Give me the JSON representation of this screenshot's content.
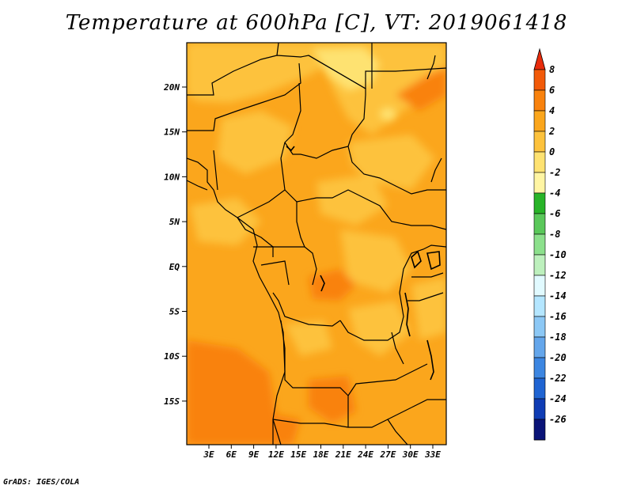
{
  "title": "Temperature at 600hPa [C], VT: 2019061418",
  "credit": "GrADS: IGES/COLA",
  "map": {
    "variable": "Temperature",
    "level": "600hPa",
    "units": "C",
    "valid_time": "2019061418",
    "lon_range": [
      0,
      35
    ],
    "lat_range": [
      -20,
      25
    ],
    "lat_labels": [
      "20N",
      "15N",
      "10N",
      "5N",
      "EQ",
      "5S",
      "10S",
      "15S"
    ],
    "lon_labels": [
      "3E",
      "6E",
      "9E",
      "12E",
      "15E",
      "18E",
      "21E",
      "24E",
      "27E",
      "30E",
      "33E"
    ]
  },
  "colorbar": {
    "labels": [
      "8",
      "6",
      "4",
      "2",
      "0",
      "-2",
      "-4",
      "-6",
      "-8",
      "-10",
      "-12",
      "-14",
      "-16",
      "-18",
      "-20",
      "-22",
      "-24",
      "-26"
    ],
    "colors": [
      "#e82c0c",
      "#f25a09",
      "#f9820d",
      "#fba61c",
      "#fdc23c",
      "#fee271",
      "#fff5a3",
      "#28b428",
      "#5ac85a",
      "#8ce08c",
      "#bdf0bd",
      "#e1faff",
      "#b4e6ff",
      "#8cc8f5",
      "#64a6eb",
      "#3c86e1",
      "#1f64d2",
      "#0f3cb4",
      "#0a1478",
      "#e1e1fa"
    ]
  }
}
